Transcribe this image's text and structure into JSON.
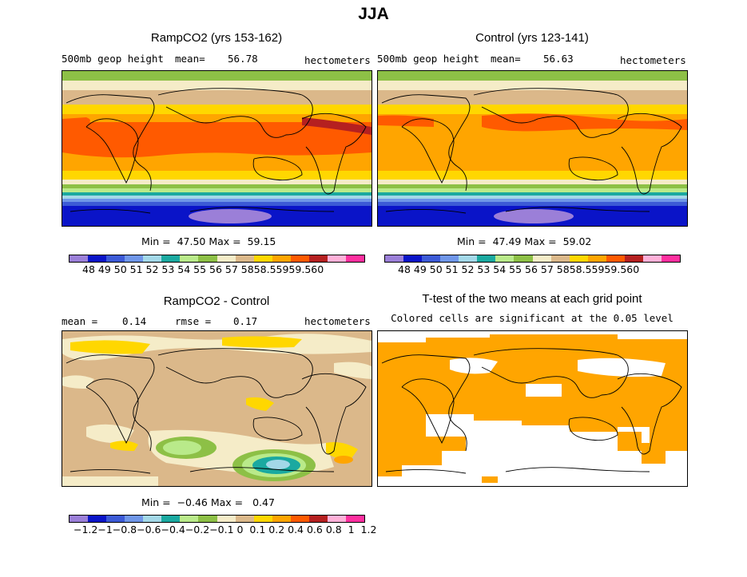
{
  "title": "JJA",
  "panels": {
    "ramp": {
      "title": "RampCO2 (yrs 153-162)",
      "left_label": "500mb geop height",
      "mean_label": "mean=",
      "mean_value": "56.78",
      "units": "hectometers",
      "minmax": "Min =  47.50 Max =  59.15",
      "colorbar_labels": "48 49 50 51 52 53 54 55 56 57 5858.55959.560"
    },
    "control": {
      "title": "Control (yrs 123-141)",
      "left_label": "500mb geop height",
      "mean_label": "mean=",
      "mean_value": "56.63",
      "units": "hectometers",
      "minmax": "Min =  47.49 Max =  59.02",
      "colorbar_labels": "48 49 50 51 52 53 54 55 56 57 5858.55959.560"
    },
    "diff": {
      "title": "RampCO2 - Control",
      "mean_label": "mean =",
      "mean_value": "0.14",
      "rmse_label": "rmse =",
      "rmse_value": "0.17",
      "units": "hectometers",
      "minmax": "Min =  −0.46 Max =   0.47",
      "colorbar_labels": "−1.2−1−0.8−0.6−0.4−0.2−0.1 0  0.1 0.2 0.4 0.6 0.8  1  1.2"
    },
    "ttest": {
      "title": "T-test of the two means at each grid point",
      "subtitle": "Colored cells are significant at the 0.05 level"
    }
  },
  "colors": {
    "scale": [
      "#9b7fd8",
      "#0a14c8",
      "#3c5ad6",
      "#6f96e8",
      "#a3d8e8",
      "#1aa9a0",
      "#b9ea8a",
      "#8dc046",
      "#f5ecc8",
      "#dbb88a",
      "#ffd700",
      "#ffa500",
      "#ff5a00",
      "#b52020",
      "#ffb0d8",
      "#ff2f9f"
    ],
    "significant": "#ffa500",
    "coastline": "#000000"
  }
}
